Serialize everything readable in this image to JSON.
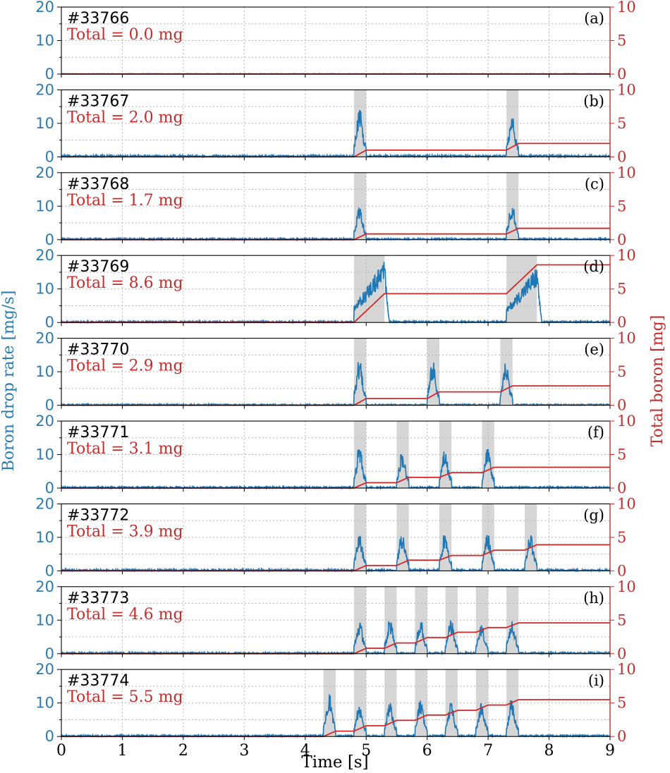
{
  "chart_data": {
    "type": "line",
    "xlabel": "Time [s]",
    "ylabel_left": "Boron drop rate [mg/s]",
    "ylabel_right": "Total boron [mg]",
    "xlim": [
      0,
      9
    ],
    "ylim_left": [
      0,
      20
    ],
    "ylim_right": [
      0,
      10
    ],
    "x_ticks": [
      "0",
      "1",
      "2",
      "3",
      "4",
      "5",
      "6",
      "7",
      "8",
      "9"
    ],
    "left_ticks": [
      "0",
      "10",
      "20"
    ],
    "right_ticks": [
      "0",
      "5",
      "10"
    ],
    "grid": true,
    "colors": {
      "rate": "#1f77b4",
      "total": "#d62728",
      "window": "#c8c8c8"
    },
    "panels": [
      {
        "letter": "(a)",
        "shot": "#33766",
        "total_text": "Total = 0.0 mg",
        "total_mg": 0.0,
        "noise": 0.15,
        "pulses": []
      },
      {
        "letter": "(b)",
        "shot": "#33767",
        "total_text": "Total = 2.0 mg",
        "total_mg": 2.0,
        "noise": 0.6,
        "pulses": [
          {
            "window": [
              4.8,
              5.0
            ],
            "peak": 14,
            "shape": "spike",
            "after_mg": 1.0
          },
          {
            "window": [
              7.3,
              7.5
            ],
            "peak": 12,
            "shape": "spike",
            "after_mg": 2.0
          }
        ]
      },
      {
        "letter": "(c)",
        "shot": "#33768",
        "total_text": "Total = 1.7 mg",
        "total_mg": 1.7,
        "noise": 0.5,
        "pulses": [
          {
            "window": [
              4.8,
              5.0
            ],
            "peak": 10,
            "shape": "spike",
            "after_mg": 0.85
          },
          {
            "window": [
              7.3,
              7.5
            ],
            "peak": 11,
            "shape": "spike",
            "after_mg": 1.7
          }
        ]
      },
      {
        "letter": "(d)",
        "shot": "#33769",
        "total_text": "Total = 8.6 mg",
        "total_mg": 8.6,
        "noise": 0.5,
        "pulses": [
          {
            "window": [
              4.8,
              5.3
            ],
            "peak": 19,
            "shape": "ramp",
            "after_mg": 4.3
          },
          {
            "window": [
              7.3,
              7.8
            ],
            "peak": 17,
            "shape": "ramp",
            "after_mg": 8.6
          }
        ]
      },
      {
        "letter": "(e)",
        "shot": "#33770",
        "total_text": "Total = 2.9 mg",
        "total_mg": 2.9,
        "noise": 0.4,
        "pulses": [
          {
            "window": [
              4.8,
              5.0
            ],
            "peak": 14,
            "shape": "spike",
            "after_mg": 1.0
          },
          {
            "window": [
              6.0,
              6.2
            ],
            "peak": 13,
            "shape": "spike",
            "after_mg": 2.0
          },
          {
            "window": [
              7.2,
              7.4
            ],
            "peak": 13,
            "shape": "spike",
            "after_mg": 2.9
          }
        ]
      },
      {
        "letter": "(f)",
        "shot": "#33771",
        "total_text": "Total = 3.1 mg",
        "total_mg": 3.1,
        "noise": 0.5,
        "pulses": [
          {
            "window": [
              4.8,
              5.0
            ],
            "peak": 12,
            "shape": "spike",
            "after_mg": 0.8
          },
          {
            "window": [
              5.5,
              5.7
            ],
            "peak": 11,
            "shape": "spike",
            "after_mg": 1.6
          },
          {
            "window": [
              6.2,
              6.4
            ],
            "peak": 11,
            "shape": "spike",
            "after_mg": 2.3
          },
          {
            "window": [
              6.9,
              7.1
            ],
            "peak": 12,
            "shape": "spike",
            "after_mg": 3.1
          }
        ]
      },
      {
        "letter": "(g)",
        "shot": "#33772",
        "total_text": "Total = 3.9 mg",
        "total_mg": 3.9,
        "noise": 0.6,
        "pulses": [
          {
            "window": [
              4.8,
              5.0
            ],
            "peak": 11,
            "shape": "spike",
            "after_mg": 0.8
          },
          {
            "window": [
              5.5,
              5.7
            ],
            "peak": 12,
            "shape": "spike",
            "after_mg": 1.6
          },
          {
            "window": [
              6.2,
              6.4
            ],
            "peak": 11,
            "shape": "spike",
            "after_mg": 2.3
          },
          {
            "window": [
              6.9,
              7.1
            ],
            "peak": 11,
            "shape": "spike",
            "after_mg": 3.1
          },
          {
            "window": [
              7.6,
              7.8
            ],
            "peak": 11,
            "shape": "spike",
            "after_mg": 3.9
          }
        ]
      },
      {
        "letter": "(h)",
        "shot": "#33773",
        "total_text": "Total = 4.6 mg",
        "total_mg": 4.6,
        "noise": 0.5,
        "pulses": [
          {
            "window": [
              4.8,
              5.0
            ],
            "peak": 10,
            "shape": "spike",
            "after_mg": 0.8
          },
          {
            "window": [
              5.3,
              5.5
            ],
            "peak": 10,
            "shape": "spike",
            "after_mg": 1.6
          },
          {
            "window": [
              5.8,
              6.0
            ],
            "peak": 10,
            "shape": "spike",
            "after_mg": 2.4
          },
          {
            "window": [
              6.3,
              6.5
            ],
            "peak": 10,
            "shape": "spike",
            "after_mg": 3.2
          },
          {
            "window": [
              6.8,
              7.0
            ],
            "peak": 9,
            "shape": "spike",
            "after_mg": 3.9
          },
          {
            "window": [
              7.3,
              7.5
            ],
            "peak": 10,
            "shape": "spike",
            "after_mg": 4.6
          }
        ]
      },
      {
        "letter": "(i)",
        "shot": "#33774",
        "total_text": "Total = 5.5 mg",
        "total_mg": 5.5,
        "noise": 0.5,
        "pulses": [
          {
            "window": [
              4.3,
              4.5
            ],
            "peak": 13,
            "shape": "spike",
            "after_mg": 0.8
          },
          {
            "window": [
              4.8,
              5.0
            ],
            "peak": 10,
            "shape": "spike",
            "after_mg": 1.6
          },
          {
            "window": [
              5.3,
              5.5
            ],
            "peak": 10,
            "shape": "spike",
            "after_mg": 2.4
          },
          {
            "window": [
              5.8,
              6.0
            ],
            "peak": 11,
            "shape": "spike",
            "after_mg": 3.2
          },
          {
            "window": [
              6.3,
              6.5
            ],
            "peak": 10,
            "shape": "spike",
            "after_mg": 3.9
          },
          {
            "window": [
              6.8,
              7.0
            ],
            "peak": 10,
            "shape": "spike",
            "after_mg": 4.7
          },
          {
            "window": [
              7.3,
              7.5
            ],
            "peak": 11,
            "shape": "spike",
            "after_mg": 5.5
          }
        ]
      }
    ]
  }
}
